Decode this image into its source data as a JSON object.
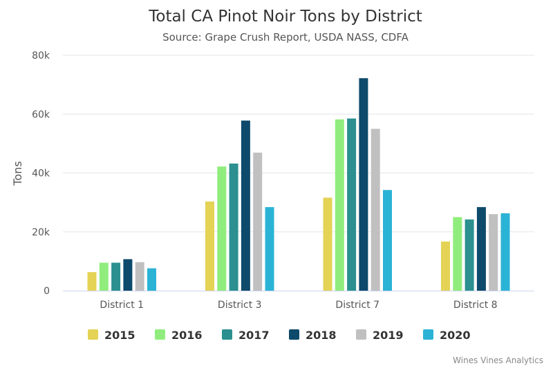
{
  "chart_data": {
    "type": "bar",
    "title": "Total CA Pinot Noir Tons by District",
    "subtitle": "Source: Grape Crush Report, USDA NASS, CDFA",
    "xlabel": "",
    "ylabel": "Tons",
    "ylim": [
      0,
      80000
    ],
    "yticks": [
      0,
      20000,
      40000,
      60000,
      80000
    ],
    "ytick_labels": [
      "0",
      "20k",
      "40k",
      "60k",
      "80k"
    ],
    "categories": [
      "District 1",
      "District 3",
      "District 7",
      "District 8"
    ],
    "grid": true,
    "legend_position": "bottom",
    "series": [
      {
        "name": "2015",
        "color": "#e4d354",
        "values": [
          6300,
          30300,
          31600,
          16700
        ]
      },
      {
        "name": "2016",
        "color": "#90ed7d",
        "values": [
          9500,
          42200,
          58200,
          25000
        ]
      },
      {
        "name": "2017",
        "color": "#2b908f",
        "values": [
          9500,
          43200,
          58500,
          24200
        ]
      },
      {
        "name": "2018",
        "color": "#0d4a6b",
        "values": [
          10700,
          57800,
          72200,
          28400
        ]
      },
      {
        "name": "2019",
        "color": "#c0c0c0",
        "values": [
          9700,
          46900,
          55000,
          26000
        ]
      },
      {
        "name": "2020",
        "color": "#2bb3d6",
        "values": [
          7600,
          28400,
          34200,
          26300
        ]
      }
    ]
  },
  "credits": "Wines Vines Analytics"
}
